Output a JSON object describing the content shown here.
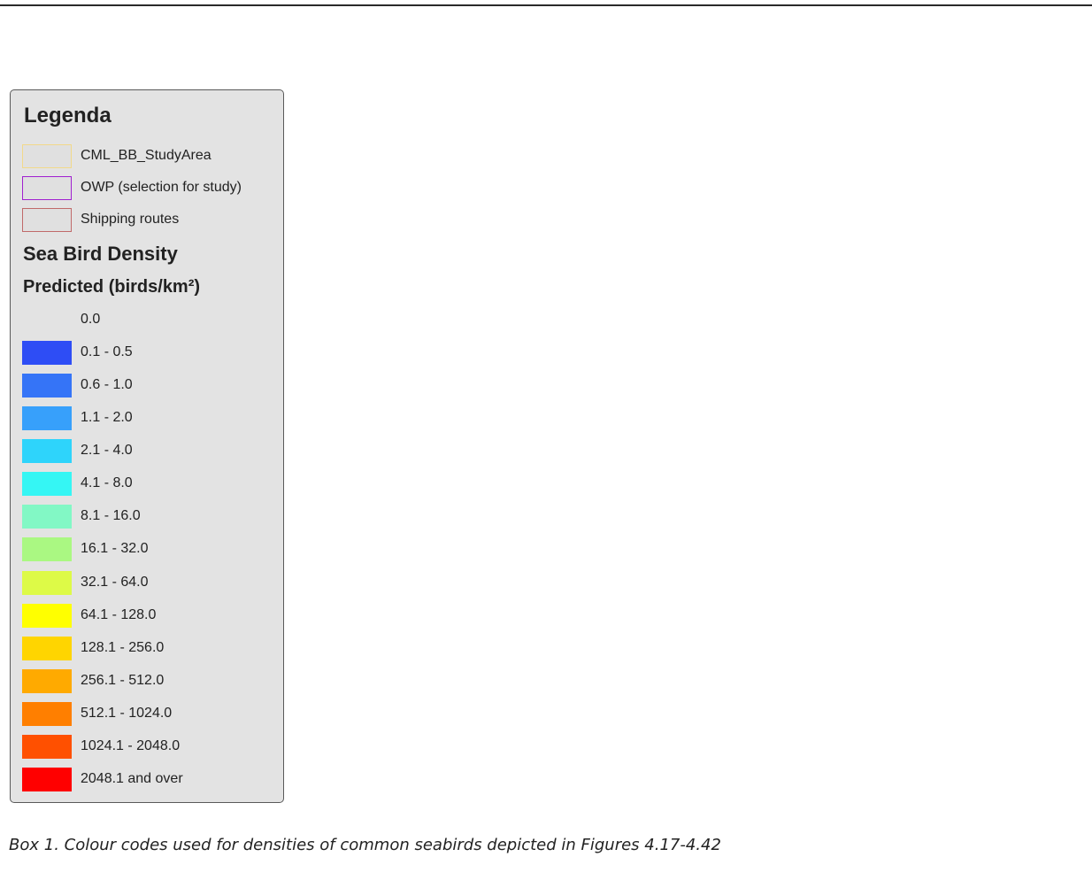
{
  "legend": {
    "title": "Legenda",
    "layers": [
      {
        "label": "CML_BB_StudyArea",
        "border_color": "#f2d98a"
      },
      {
        "label": "OWP (selection for study)",
        "border_color": "#a020d0"
      },
      {
        "label": "Shipping routes",
        "border_color": "#c06a6a"
      }
    ],
    "density_title": "Sea Bird Density",
    "density_subtitle": "Predicted (birds/km²)",
    "classes": [
      {
        "label": "0.0",
        "color": "#e3e3e3"
      },
      {
        "label": "0.1 - 0.5",
        "color": "#2e4df5"
      },
      {
        "label": "0.6 - 1.0",
        "color": "#3574f7"
      },
      {
        "label": "1.1 - 2.0",
        "color": "#37a0fb"
      },
      {
        "label": "2.1 - 4.0",
        "color": "#2ed4fb"
      },
      {
        "label": "4.1 - 8.0",
        "color": "#35f6f4"
      },
      {
        "label": "8.1 - 16.0",
        "color": "#82f8c5"
      },
      {
        "label": "16.1 - 32.0",
        "color": "#aaf882"
      },
      {
        "label": "32.1 - 64.0",
        "color": "#ddfa47"
      },
      {
        "label": "64.1 - 128.0",
        "color": "#ffff00"
      },
      {
        "label": "128.1 - 256.0",
        "color": "#ffd500"
      },
      {
        "label": "256.1 - 512.0",
        "color": "#ffaa00"
      },
      {
        "label": "512.1 - 1024.0",
        "color": "#ff7f00"
      },
      {
        "label": "1024.1 - 2048.0",
        "color": "#ff5000"
      },
      {
        "label": "2048.1 and over",
        "color": "#ff0000"
      }
    ]
  },
  "caption": "Box 1. Colour codes used for densities of common seabirds depicted in Figures 4.17-4.42"
}
